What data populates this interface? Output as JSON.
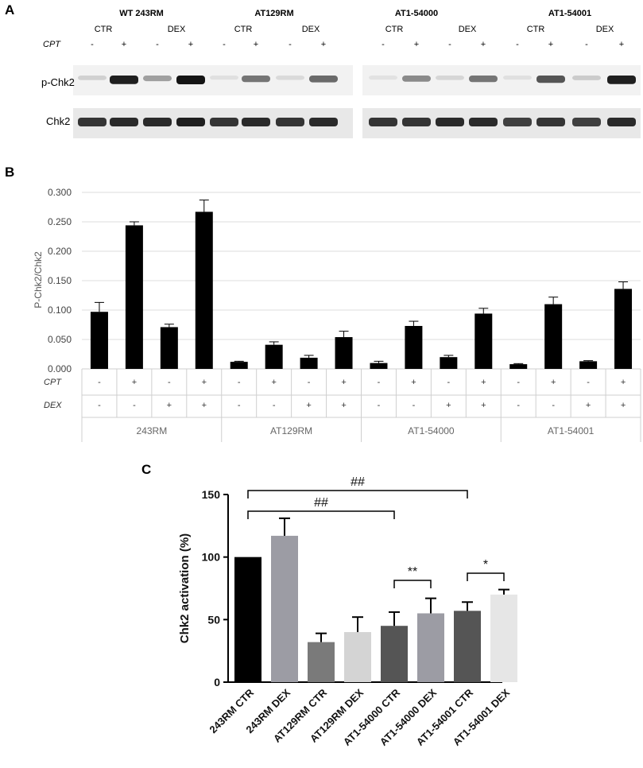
{
  "panels": {
    "a": "A",
    "b": "B",
    "c": "C"
  },
  "blot": {
    "groups": [
      {
        "title": "WT 243RM",
        "sub": [
          "CTR",
          "DEX"
        ],
        "cpt": [
          "-",
          "+",
          "-",
          "+"
        ]
      },
      {
        "title": "AT129RM",
        "sub": [
          "CTR",
          "DEX"
        ],
        "cpt": [
          "-",
          "+",
          "-",
          "+"
        ]
      },
      {
        "title": "AT1-54000",
        "sub": [
          "CTR",
          "DEX"
        ],
        "cpt": [
          "-",
          "+",
          "-",
          "+"
        ]
      },
      {
        "title": "AT1-54001",
        "sub": [
          "CTR",
          "DEX"
        ],
        "cpt": [
          "-",
          "+",
          "-",
          "+"
        ]
      }
    ],
    "cpt_label": "CPT",
    "row_labels": [
      "p-Chk2",
      "Chk2"
    ],
    "pchk2_intensity": [
      0.12,
      0.95,
      0.35,
      1.0,
      0.05,
      0.55,
      0.08,
      0.6,
      0.04,
      0.45,
      0.1,
      0.55,
      0.05,
      0.7,
      0.15,
      0.95
    ],
    "chk2_intensity": [
      0.85,
      0.9,
      0.9,
      0.95,
      0.85,
      0.9,
      0.85,
      0.9,
      0.85,
      0.85,
      0.9,
      0.9,
      0.8,
      0.85,
      0.8,
      0.9
    ]
  },
  "chart_data": [
    {
      "type": "bar",
      "ylabel": "P-Chk2/Chk2",
      "ylim": [
        0,
        0.3
      ],
      "yticks": [
        "0.000",
        "0.050",
        "0.100",
        "0.150",
        "0.200",
        "0.250",
        "0.300"
      ],
      "grid": true,
      "values": [
        0.097,
        0.244,
        0.071,
        0.267,
        0.012,
        0.041,
        0.019,
        0.054,
        0.01,
        0.073,
        0.02,
        0.094,
        0.008,
        0.11,
        0.013,
        0.136
      ],
      "errors": [
        0.016,
        0.006,
        0.005,
        0.02,
        0.001,
        0.005,
        0.004,
        0.01,
        0.003,
        0.008,
        0.003,
        0.009,
        0.001,
        0.012,
        0.001,
        0.012
      ],
      "table": {
        "rows": [
          {
            "label": "CPT",
            "values": [
              "-",
              "+",
              "-",
              "+",
              "-",
              "+",
              "-",
              "+",
              "-",
              "+",
              "-",
              "+",
              "-",
              "+",
              "-",
              "+"
            ]
          },
          {
            "label": "DEX",
            "values": [
              "-",
              "-",
              "+",
              "+",
              "-",
              "-",
              "+",
              "+",
              "-",
              "-",
              "+",
              "+",
              "-",
              "-",
              "+",
              "+"
            ]
          }
        ],
        "groups": [
          "243RM",
          "AT129RM",
          "AT1-54000",
          "AT1-54001"
        ]
      }
    },
    {
      "type": "bar",
      "ylabel": "Chk2 activation (%)",
      "ylim": [
        0,
        150
      ],
      "yticks": [
        "0",
        "50",
        "100",
        "150"
      ],
      "categories": [
        "243RM CTR",
        "243RM DEX",
        "AT129RM CTR",
        "AT129RM DEX",
        "AT1-54000 CTR",
        "AT1-54000 DEX",
        "AT1-54001 CTR",
        "AT1-54001 DEX"
      ],
      "values": [
        100,
        117,
        32,
        40,
        45,
        55,
        57,
        70
      ],
      "errors": [
        0,
        14,
        7,
        12,
        11,
        12,
        7,
        4
      ],
      "colors": [
        "#000000",
        "#9c9ca4",
        "#7a7a7a",
        "#d4d4d4",
        "#555555",
        "#9c9ca4",
        "#555555",
        "#e6e6e6"
      ],
      "annotations": [
        {
          "text": "##",
          "from": 0,
          "to": 6
        },
        {
          "text": "##",
          "from": 0,
          "to": 4
        },
        {
          "text": "**",
          "from": 4,
          "to": 5
        },
        {
          "text": "*",
          "from": 6,
          "to": 7
        }
      ]
    }
  ]
}
